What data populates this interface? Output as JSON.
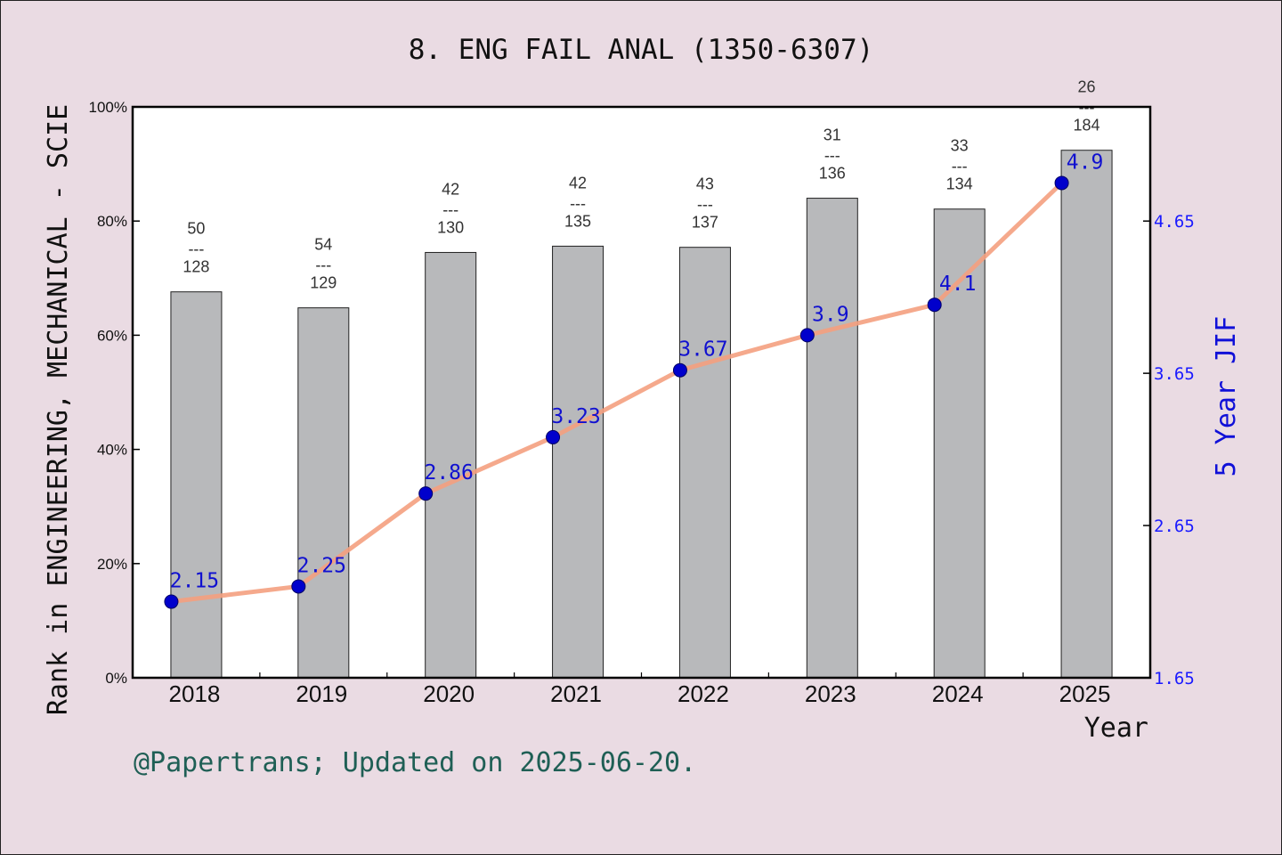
{
  "chart_data": {
    "type": "bar+line",
    "title": "8. ENG FAIL ANAL (1350-6307)",
    "xlabel": "Year",
    "ylabel_left": "Rank in ENGINEERING, MECHANICAL - SCIE",
    "ylabel_right": "5 Year JIF",
    "categories": [
      "2018",
      "2019",
      "2020",
      "2021",
      "2022",
      "2023",
      "2024",
      "2025"
    ],
    "yticks_left": [
      "0%",
      "20%",
      "40%",
      "60%",
      "80%",
      "100%"
    ],
    "ylim_left": [
      0,
      100
    ],
    "yticks_right": [
      "1.65",
      "2.65",
      "3.65",
      "4.65"
    ],
    "yticks_right_values": [
      1.65,
      2.65,
      3.65,
      4.65
    ],
    "ylim_right": [
      1.65,
      5.4
    ],
    "bars": {
      "rank": [
        50,
        54,
        42,
        42,
        43,
        31,
        33,
        26
      ],
      "total": [
        128,
        129,
        130,
        135,
        137,
        136,
        134,
        184
      ],
      "percentile": [
        67.6,
        64.8,
        74.5,
        75.6,
        75.4,
        84.0,
        82.1,
        92.4
      ],
      "divider": "---",
      "color": "#b8b9bb"
    },
    "line": {
      "values": [
        2.15,
        2.25,
        2.86,
        3.23,
        3.67,
        3.9,
        4.1,
        4.9
      ],
      "labels": [
        "2.15",
        "2.25",
        "2.86",
        "3.23",
        "3.67",
        "3.9",
        "4.1",
        "4.9"
      ],
      "line_color": "#f4a07f",
      "marker_color": "#0000cc"
    },
    "credit": "@Papertrans; Updated on 2025-06-20."
  }
}
